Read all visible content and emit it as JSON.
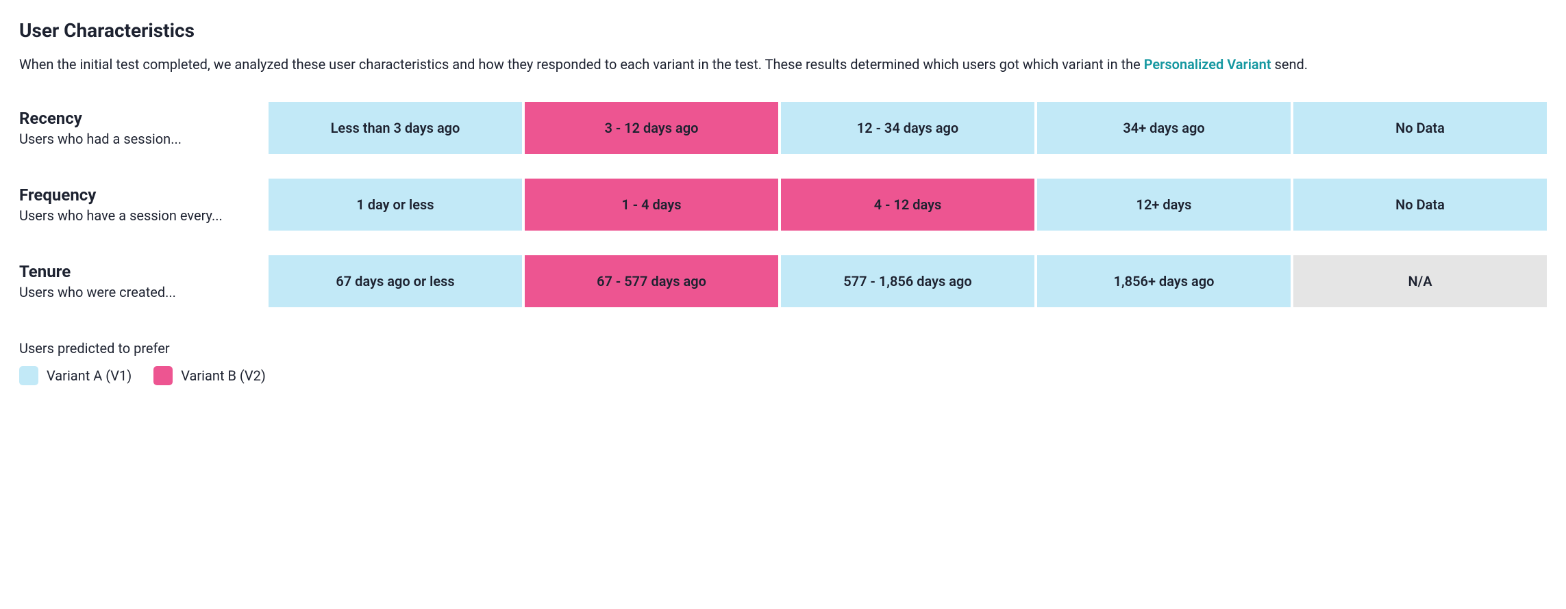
{
  "colors": {
    "variant_a": "#c2e9f7",
    "variant_b": "#ed5591",
    "neutral": "#e5e5e5",
    "text": "#1d2230",
    "link": "#1497a0",
    "background": "#ffffff"
  },
  "header": {
    "title": "User Characteristics",
    "description_pre": "When the initial test completed, we analyzed these user characteristics and how they responded to each variant in the test. These results determined which users got which variant in the ",
    "link_text": "Personalized Variant",
    "description_post": " send."
  },
  "rows": [
    {
      "title": "Recency",
      "subtitle": "Users who had a session...",
      "cells": [
        {
          "label": "Less than 3 days ago",
          "variant": "a"
        },
        {
          "label": "3 - 12 days ago",
          "variant": "b"
        },
        {
          "label": "12 - 34 days ago",
          "variant": "a"
        },
        {
          "label": "34+ days ago",
          "variant": "a"
        },
        {
          "label": "No Data",
          "variant": "a"
        }
      ]
    },
    {
      "title": "Frequency",
      "subtitle": "Users who have a session every...",
      "cells": [
        {
          "label": "1 day or less",
          "variant": "a"
        },
        {
          "label": "1 - 4 days",
          "variant": "b"
        },
        {
          "label": "4 - 12 days",
          "variant": "b"
        },
        {
          "label": "12+ days",
          "variant": "a"
        },
        {
          "label": "No Data",
          "variant": "a"
        }
      ]
    },
    {
      "title": "Tenure",
      "subtitle": "Users who were created...",
      "cells": [
        {
          "label": "67 days ago or less",
          "variant": "a"
        },
        {
          "label": "67 - 577 days ago",
          "variant": "b"
        },
        {
          "label": "577 - 1,856 days ago",
          "variant": "a"
        },
        {
          "label": "1,856+ days ago",
          "variant": "a"
        },
        {
          "label": "N/A",
          "variant": "neutral"
        }
      ]
    }
  ],
  "legend": {
    "title": "Users predicted to prefer",
    "items": [
      {
        "label": "Variant A (V1)",
        "color_key": "variant_a"
      },
      {
        "label": "Variant B (V2)",
        "color_key": "variant_b"
      }
    ]
  }
}
